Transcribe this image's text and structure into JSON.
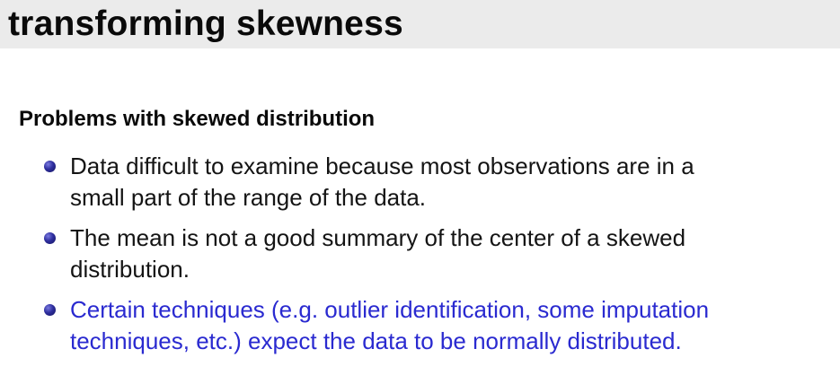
{
  "slide": {
    "title": "transforming skewness",
    "block_heading": "Problems with skewed distribution",
    "bullets": [
      {
        "line1": "Data difficult to examine because most observations are in a",
        "line2": "small part of the range of the data."
      },
      {
        "line1": "The mean is not a good summary of the center of a skewed",
        "line2": "distribution."
      },
      {
        "line1": "Certain techniques (e.g. outlier identification, some imputation",
        "line2": "techniques, etc.) expect the data to be normally distributed."
      }
    ]
  },
  "colors": {
    "title_bar": "#ebebeb",
    "text": "#141414",
    "alert_text": "#2a2ad0",
    "bullet": "#2e2e9e"
  },
  "icons": {
    "bullet": "bullet-dot-icon"
  }
}
